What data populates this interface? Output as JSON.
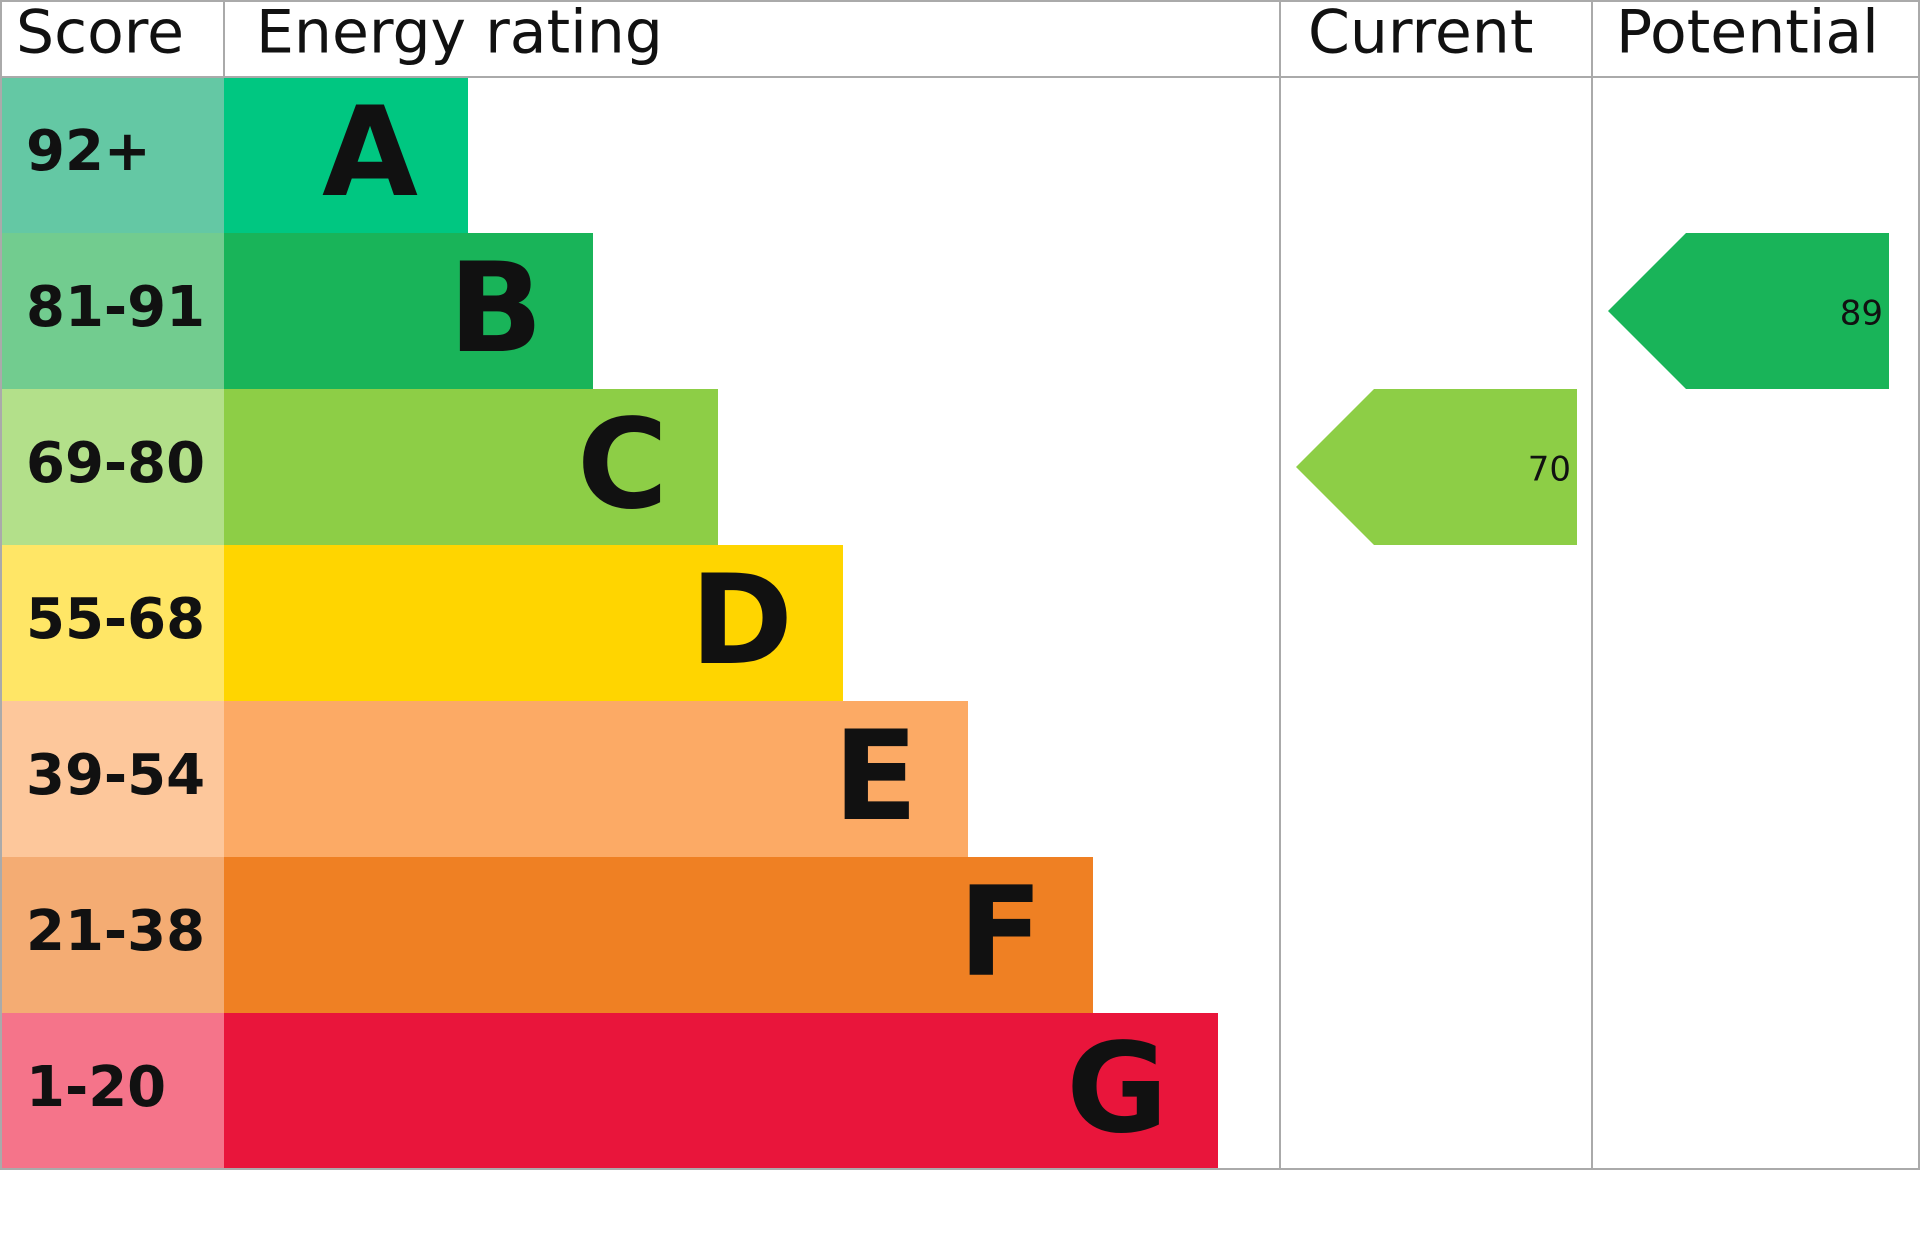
{
  "header": {
    "score": "Score",
    "energy_rating": "Energy rating",
    "current": "Current",
    "potential": "Potential"
  },
  "bands": [
    {
      "score": "92+",
      "letter": "A",
      "color": "#00c781",
      "score_color": "#64c8a4"
    },
    {
      "score": "81-91",
      "letter": "B",
      "color": "#19b459",
      "score_color": "#72cc8f"
    },
    {
      "score": "69-80",
      "letter": "C",
      "color": "#8dce46",
      "score_color": "#b3e08a"
    },
    {
      "score": "55-68",
      "letter": "D",
      "color": "#ffd500",
      "score_color": "#ffe666"
    },
    {
      "score": "39-54",
      "letter": "E",
      "color": "#fcaa65",
      "score_color": "#fdc79b"
    },
    {
      "score": "21-38",
      "letter": "F",
      "color": "#ef8023",
      "score_color": "#f4ac73"
    },
    {
      "score": "1-20",
      "letter": "G",
      "color": "#e9153b",
      "score_color": "#f5748a"
    }
  ],
  "current": {
    "value": 70,
    "band": "C"
  },
  "potential": {
    "value": 89,
    "band": "B"
  }
}
